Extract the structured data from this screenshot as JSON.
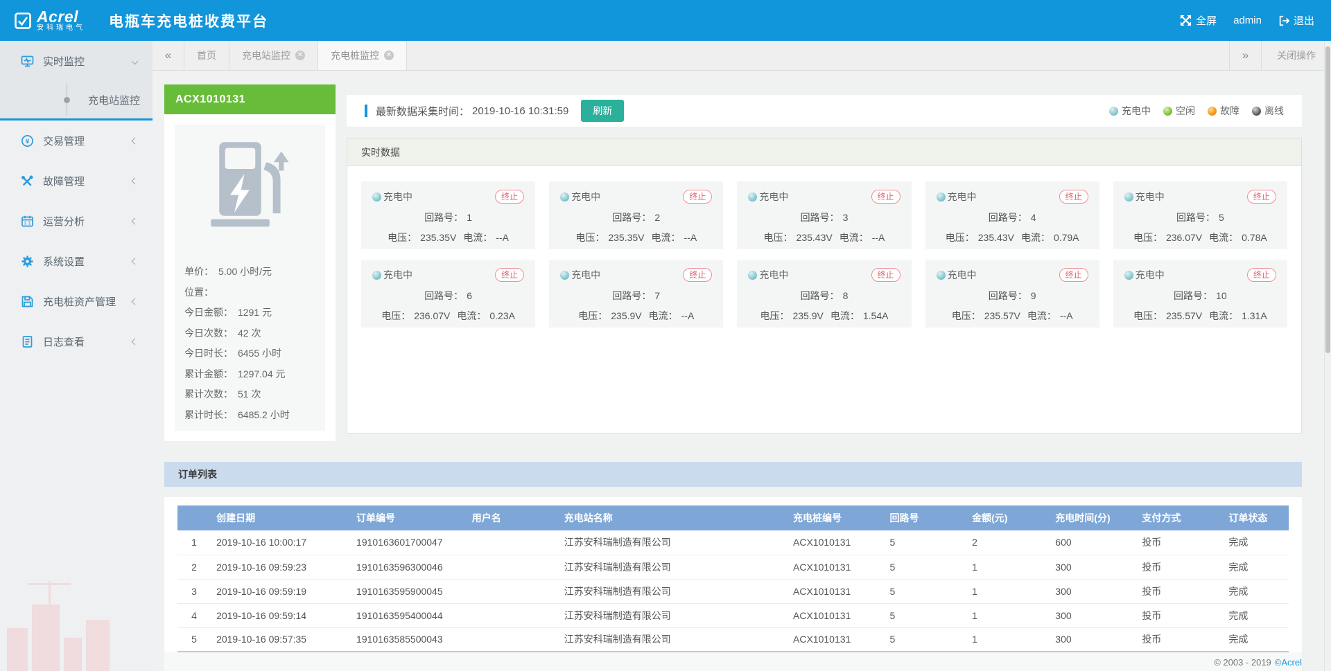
{
  "header": {
    "logo_text": "Acrel",
    "logo_subtext": "安科瑞电气",
    "title": "电瓶车充电桩收费平台",
    "fullscreen": "全屏",
    "user": "admin",
    "logout": "退出"
  },
  "tabbar": {
    "back": "«",
    "forward": "»",
    "tabs": [
      {
        "label": "首页",
        "closable": false,
        "active": false
      },
      {
        "label": "充电站监控",
        "closable": true,
        "active": false
      },
      {
        "label": "充电桩监控",
        "closable": true,
        "active": true
      }
    ],
    "close_ops": "关闭操作"
  },
  "sidebar": {
    "sections": [
      {
        "label": "实时监控",
        "icon": "monitor-icon",
        "expanded": true,
        "children": [
          {
            "label": "充电站监控",
            "active": true
          }
        ]
      },
      {
        "label": "交易管理",
        "icon": "transaction-icon"
      },
      {
        "label": "故障管理",
        "icon": "fault-icon"
      },
      {
        "label": "运营分析",
        "icon": "calendar-icon"
      },
      {
        "label": "系统设置",
        "icon": "gear-icon"
      },
      {
        "label": "充电桩资产管理",
        "icon": "asset-icon"
      },
      {
        "label": "日志查看",
        "icon": "log-icon"
      }
    ]
  },
  "pile": {
    "code": "ACX1010131",
    "stats": [
      {
        "label": "单价：",
        "value": "5.00 小时/元"
      },
      {
        "label": "位置：",
        "value": ""
      },
      {
        "label": "今日金额：",
        "value": "1291 元"
      },
      {
        "label": "今日次数：",
        "value": "42 次"
      },
      {
        "label": "今日时长：",
        "value": "6455 小时"
      },
      {
        "label": "累计金额：",
        "value": "1297.04 元"
      },
      {
        "label": "累计次数：",
        "value": "51 次"
      },
      {
        "label": "累计时长：",
        "value": "6485.2 小时"
      }
    ]
  },
  "infobar": {
    "time_label": "最新数据采集时间：",
    "time_value": "2019-10-16 10:31:59",
    "refresh": "刷新",
    "legend": [
      {
        "label": "充电中",
        "key": "charging"
      },
      {
        "label": "空闲",
        "key": "idle"
      },
      {
        "label": "故障",
        "key": "fault"
      },
      {
        "label": "离线",
        "key": "offline"
      }
    ]
  },
  "realtime": {
    "title": "实时数据",
    "status": "充电中",
    "terminate": "终止",
    "circuit_label": "回路号：",
    "voltage_label": "电压：",
    "current_label": "电流：",
    "circuits": [
      {
        "no": "1",
        "voltage": "235.35V",
        "current": "--A"
      },
      {
        "no": "2",
        "voltage": "235.35V",
        "current": "--A"
      },
      {
        "no": "3",
        "voltage": "235.43V",
        "current": "--A"
      },
      {
        "no": "4",
        "voltage": "235.43V",
        "current": "0.79A"
      },
      {
        "no": "5",
        "voltage": "236.07V",
        "current": "0.78A"
      },
      {
        "no": "6",
        "voltage": "236.07V",
        "current": "0.23A"
      },
      {
        "no": "7",
        "voltage": "235.9V",
        "current": "--A"
      },
      {
        "no": "8",
        "voltage": "235.9V",
        "current": "1.54A"
      },
      {
        "no": "9",
        "voltage": "235.57V",
        "current": "--A"
      },
      {
        "no": "10",
        "voltage": "235.57V",
        "current": "1.31A"
      }
    ]
  },
  "orders": {
    "title": "订单列表",
    "columns": [
      "创建日期",
      "订单编号",
      "用户名",
      "充电站名称",
      "充电桩编号",
      "回路号",
      "金额(元)",
      "充电时间(分)",
      "支付方式",
      "订单状态"
    ],
    "rows": [
      {
        "seq": "1",
        "date": "2019-10-16 10:00:17",
        "order_no": "1910163601700047",
        "user": "",
        "station": "江苏安科瑞制造有限公司",
        "pile": "ACX1010131",
        "circuit": "5",
        "amount": "2",
        "minutes": "600",
        "pay": "投币",
        "status": "完成"
      },
      {
        "seq": "2",
        "date": "2019-10-16 09:59:23",
        "order_no": "1910163596300046",
        "user": "",
        "station": "江苏安科瑞制造有限公司",
        "pile": "ACX1010131",
        "circuit": "5",
        "amount": "1",
        "minutes": "300",
        "pay": "投币",
        "status": "完成"
      },
      {
        "seq": "3",
        "date": "2019-10-16 09:59:19",
        "order_no": "1910163595900045",
        "user": "",
        "station": "江苏安科瑞制造有限公司",
        "pile": "ACX1010131",
        "circuit": "5",
        "amount": "1",
        "minutes": "300",
        "pay": "投币",
        "status": "完成"
      },
      {
        "seq": "4",
        "date": "2019-10-16 09:59:14",
        "order_no": "1910163595400044",
        "user": "",
        "station": "江苏安科瑞制造有限公司",
        "pile": "ACX1010131",
        "circuit": "5",
        "amount": "1",
        "minutes": "300",
        "pay": "投币",
        "status": "完成"
      },
      {
        "seq": "5",
        "date": "2019-10-16 09:57:35",
        "order_no": "1910163585500043",
        "user": "",
        "station": "江苏安科瑞制造有限公司",
        "pile": "ACX1010131",
        "circuit": "5",
        "amount": "1",
        "minutes": "300",
        "pay": "投币",
        "status": "完成"
      }
    ]
  },
  "footer": {
    "copyright": "© 2003 - 2019",
    "brand": "©Acrel"
  },
  "colors": {
    "header_blue": "#1296db",
    "pile_green": "#67bd39",
    "refresh_teal": "#2bb19b",
    "terminate_red": "#e4606b",
    "table_header_blue": "#7ea7d8",
    "orders_bar_blue": "#cadbed",
    "status_charging": "#7cc4cb",
    "status_idle": "#8cc63f",
    "status_fault": "#f59a23",
    "status_offline": "#444444"
  }
}
